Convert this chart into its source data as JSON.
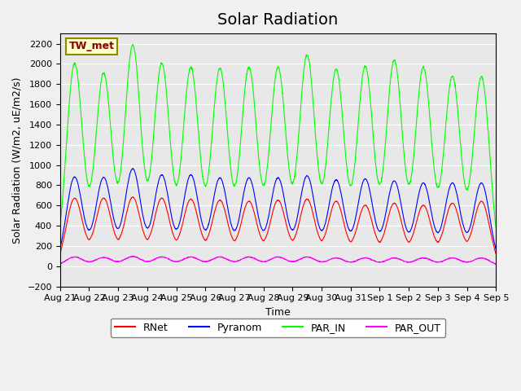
{
  "title": "Solar Radiation",
  "ylabel": "Solar Radiation (W/m2, uE/m2/s)",
  "xlabel": "Time",
  "station_label": "TW_met",
  "ylim": [
    -200,
    2300
  ],
  "yticks": [
    -200,
    0,
    200,
    400,
    600,
    800,
    1000,
    1200,
    1400,
    1600,
    1800,
    2000,
    2200
  ],
  "x_tick_labels": [
    "Aug 21",
    "Aug 22",
    "Aug 23",
    "Aug 24",
    "Aug 25",
    "Aug 26",
    "Aug 27",
    "Aug 28",
    "Aug 29",
    "Aug 30",
    "Aug 31",
    "Sep 1",
    "Sep 2",
    "Sep 3",
    "Sep 4",
    "Sep 5"
  ],
  "n_days": 15,
  "colors": {
    "RNet": "#FF0000",
    "Pyranom": "#0000FF",
    "PAR_IN": "#00FF00",
    "PAR_OUT": "#FF00FF"
  },
  "background_color": "#E8E8E8",
  "legend_entries": [
    "RNet",
    "Pyranom",
    "PAR_IN",
    "PAR_OUT"
  ],
  "title_fontsize": 14,
  "label_fontsize": 9,
  "tick_fontsize": 8
}
